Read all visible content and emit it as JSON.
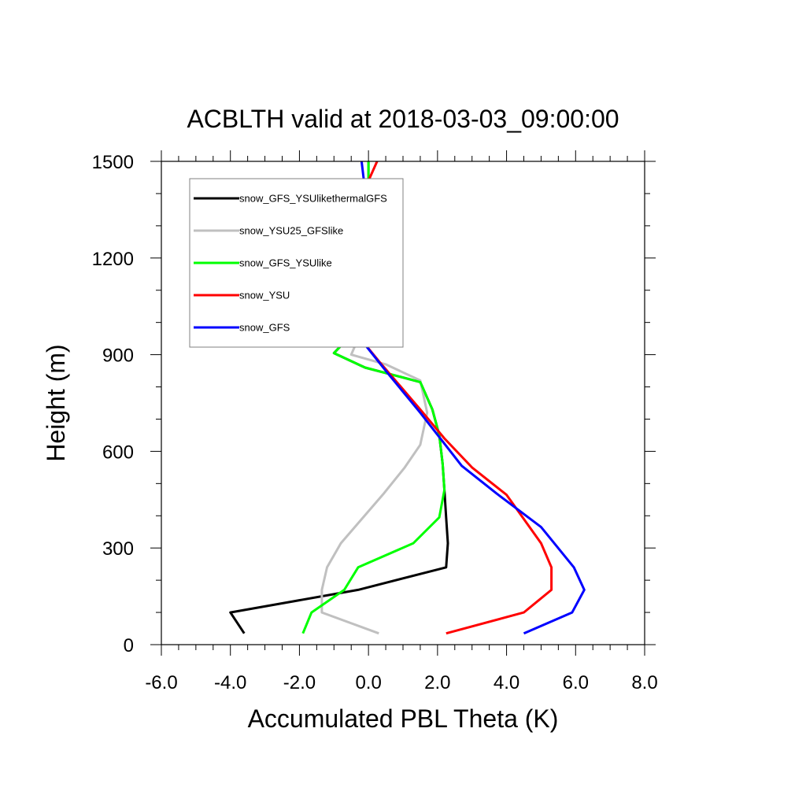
{
  "chart_data": {
    "type": "line",
    "title": "ACBLTH valid at 2018-03-03_09:00:00",
    "xlabel": "Accumulated PBL Theta (K)",
    "ylabel": "Height (m)",
    "xlim": [
      -6.0,
      8.0
    ],
    "ylim": [
      0,
      1500
    ],
    "x_ticks": [
      -6.0,
      -4.0,
      -2.0,
      0.0,
      2.0,
      4.0,
      6.0,
      8.0
    ],
    "x_tick_labels": [
      "-6.0",
      "-4.0",
      "-2.0",
      "0.0",
      "2.0",
      "4.0",
      "6.0",
      "8.0"
    ],
    "y_ticks": [
      0,
      300,
      600,
      900,
      1200,
      1500
    ],
    "y_tick_labels": [
      "0",
      "300",
      "600",
      "900",
      "1200",
      "1500"
    ],
    "grid": false,
    "legend_position": "top-left",
    "series": [
      {
        "name": "snow_GFS_YSUlikethermalGFS",
        "color": "#000000",
        "points": [
          [
            -3.6,
            35
          ],
          [
            -4.0,
            100
          ],
          [
            -0.3,
            170
          ],
          [
            2.25,
            240
          ],
          [
            2.3,
            315
          ],
          [
            2.25,
            395
          ],
          [
            2.2,
            480
          ],
          [
            2.15,
            560
          ],
          [
            2.05,
            650
          ],
          [
            1.85,
            730
          ],
          [
            1.5,
            815
          ],
          [
            -0.1,
            860
          ],
          [
            -1.0,
            905
          ],
          [
            -0.15,
            1000
          ],
          [
            0.0,
            1105
          ],
          [
            0.0,
            1500
          ]
        ]
      },
      {
        "name": "snow_YSU25_GFSlike",
        "color": "#c0c0c0",
        "points": [
          [
            0.3,
            35
          ],
          [
            -1.35,
            100
          ],
          [
            -1.35,
            170
          ],
          [
            -1.2,
            240
          ],
          [
            -0.8,
            315
          ],
          [
            0.45,
            470
          ],
          [
            1.05,
            550
          ],
          [
            1.5,
            620
          ],
          [
            1.7,
            720
          ],
          [
            1.5,
            820
          ],
          [
            0.5,
            870
          ],
          [
            -0.5,
            900
          ],
          [
            -0.1,
            1000
          ],
          [
            0.0,
            1105
          ],
          [
            0.0,
            1500
          ]
        ]
      },
      {
        "name": "snow_GFS_YSUlike",
        "color": "#00ff00",
        "points": [
          [
            -1.9,
            35
          ],
          [
            -1.65,
            100
          ],
          [
            -0.7,
            170
          ],
          [
            -0.3,
            240
          ],
          [
            1.3,
            315
          ],
          [
            2.05,
            395
          ],
          [
            2.2,
            480
          ],
          [
            2.15,
            560
          ],
          [
            2.05,
            650
          ],
          [
            1.85,
            730
          ],
          [
            1.5,
            815
          ],
          [
            -0.1,
            860
          ],
          [
            -1.0,
            905
          ],
          [
            -0.15,
            1000
          ],
          [
            0.0,
            1105
          ],
          [
            0.0,
            1500
          ]
        ]
      },
      {
        "name": "snow_YSU",
        "color": "#ff0000",
        "points": [
          [
            2.25,
            35
          ],
          [
            4.5,
            100
          ],
          [
            5.3,
            170
          ],
          [
            5.3,
            240
          ],
          [
            5.0,
            315
          ],
          [
            4.0,
            465
          ],
          [
            3.0,
            550
          ],
          [
            2.2,
            640
          ],
          [
            1.5,
            730
          ],
          [
            0.3,
            880
          ],
          [
            -0.5,
            985
          ],
          [
            -0.75,
            1090
          ],
          [
            -0.75,
            1190
          ],
          [
            -0.25,
            1380
          ],
          [
            0.25,
            1500
          ]
        ]
      },
      {
        "name": "snow_GFS",
        "color": "#0000ff",
        "points": [
          [
            4.5,
            35
          ],
          [
            5.9,
            100
          ],
          [
            6.25,
            170
          ],
          [
            5.95,
            240
          ],
          [
            5.0,
            365
          ],
          [
            3.7,
            470
          ],
          [
            2.7,
            555
          ],
          [
            1.5,
            720
          ],
          [
            0.5,
            850
          ],
          [
            -0.5,
            985
          ],
          [
            -0.75,
            1090
          ],
          [
            -0.85,
            1200
          ],
          [
            -1.3,
            1300
          ],
          [
            -0.1,
            1410
          ],
          [
            -0.2,
            1500
          ]
        ]
      }
    ]
  }
}
